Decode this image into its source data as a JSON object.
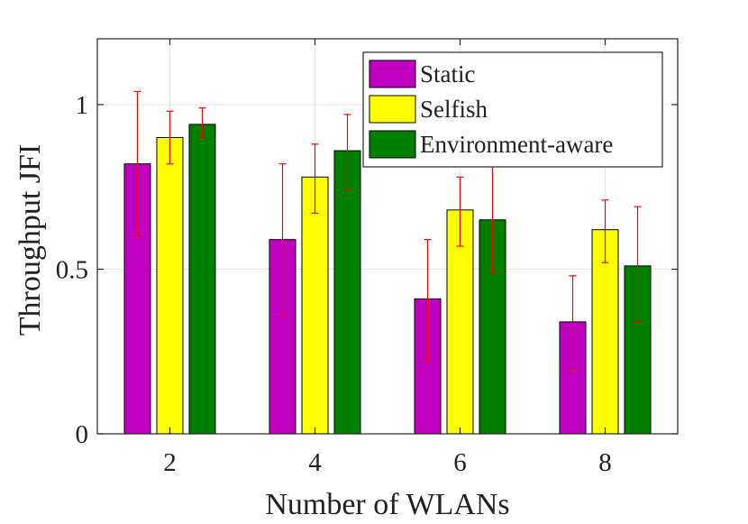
{
  "chart_data": {
    "type": "bar",
    "title": "",
    "xlabel": "Number of WLANs",
    "ylabel": "Throughput JFI",
    "categories": [
      "2",
      "4",
      "6",
      "8"
    ],
    "ylim": [
      0,
      1.2
    ],
    "yticks": [
      0,
      0.5,
      1
    ],
    "ytick_labels": [
      "0",
      "0.5",
      "1"
    ],
    "grid": true,
    "legend_position": "top-right",
    "series": [
      {
        "name": "Static",
        "color": "#c000c0",
        "values": [
          0.82,
          0.59,
          0.41,
          0.34
        ],
        "err_low": [
          0.6,
          0.36,
          0.22,
          0.19
        ],
        "err_high": [
          1.04,
          0.82,
          0.59,
          0.48
        ]
      },
      {
        "name": "Selfish",
        "color": "#ffff00",
        "values": [
          0.9,
          0.78,
          0.68,
          0.62
        ],
        "err_low": [
          0.82,
          0.67,
          0.57,
          0.52
        ],
        "err_high": [
          0.98,
          0.88,
          0.78,
          0.71
        ]
      },
      {
        "name": "Environment-aware",
        "color": "#008000",
        "values": [
          0.94,
          0.86,
          0.65,
          0.51
        ],
        "err_low": [
          0.9,
          0.74,
          0.49,
          0.34
        ],
        "err_high": [
          0.99,
          0.97,
          0.82,
          0.69
        ]
      }
    ],
    "error_bar_color": "#ff0000"
  }
}
